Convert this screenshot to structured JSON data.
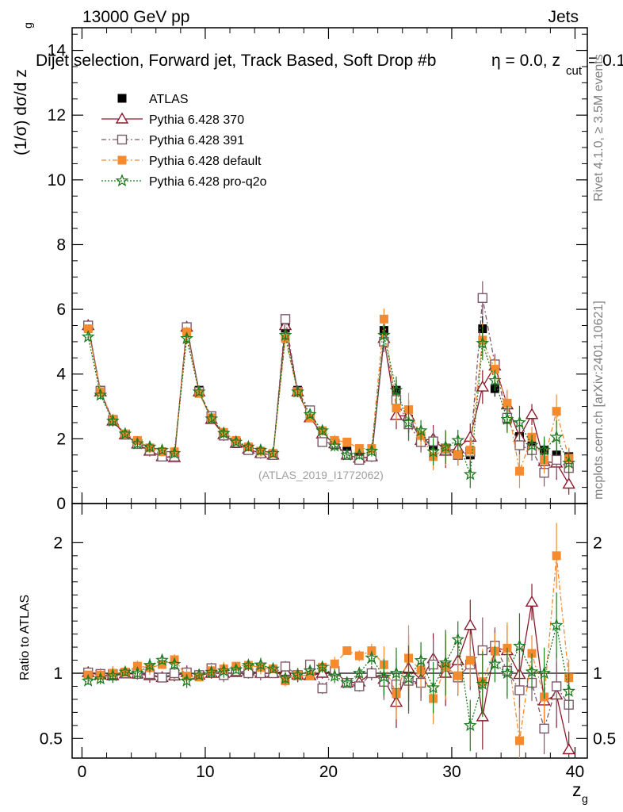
{
  "header": {
    "left": "13000 GeV pp",
    "right": "Jets",
    "title": "Dijet selection, Forward jet, Track Based, Soft Drop #b",
    "title_beta": "η = 0.0, z",
    "title_sub": "cut",
    "title_tail": " = 0.1",
    "watermark": "(ATLAS_2019_I1772062)",
    "side_rivet": "Rivet 4.1.0, ≥ 3.5M events",
    "side_mcplots": "mcplots.cern.ch [arXiv:2401.10621]"
  },
  "axes": {
    "ylabel_main": "(1/σ) dσ/d z",
    "ylabel_main_sub": "g",
    "ylabel_ratio": "Ratio to ATLAS",
    "xlabel": "z",
    "xlabel_sub": "g",
    "main_yticks": [
      "0",
      "2",
      "4",
      "6",
      "8",
      "10",
      "12",
      "14"
    ],
    "ratio_yticks": [
      "0.5",
      "1",
      "2"
    ],
    "xticks": [
      "0",
      "10",
      "20",
      "30",
      "40"
    ]
  },
  "chart_data": {
    "type": "scatter",
    "xlim": [
      -0.8,
      41
    ],
    "ylim_main": [
      0,
      14.7
    ],
    "ylim_ratio": [
      0.35,
      2.3
    ],
    "x": [
      0.5,
      1.5,
      2.5,
      3.5,
      4.5,
      5.5,
      6.5,
      7.5,
      8.5,
      9.5,
      10.5,
      11.5,
      12.5,
      13.5,
      14.5,
      15.5,
      16.5,
      17.5,
      18.5,
      19.5,
      20.5,
      21.5,
      22.5,
      23.5,
      24.5,
      25.5,
      26.5,
      27.5,
      28.5,
      29.5,
      30.5,
      31.5,
      32.5,
      33.5,
      34.5,
      35.5,
      36.5,
      37.5,
      38.5,
      39.5
    ],
    "series": [
      {
        "name": "ATLAS",
        "color": "#000000",
        "marker": "square-filled",
        "values": [
          5.47,
          3.5,
          2.6,
          2.13,
          1.85,
          1.65,
          1.5,
          1.45,
          5.42,
          3.5,
          2.6,
          2.13,
          1.85,
          1.65,
          1.55,
          1.5,
          5.42,
          3.5,
          2.7,
          2.15,
          1.82,
          1.62,
          1.5,
          1.45,
          5.35,
          3.5,
          2.6,
          2.05,
          1.8,
          1.62,
          1.55,
          1.5,
          5.4,
          3.55,
          2.6,
          2.07,
          1.78,
          1.65,
          1.5,
          1.45
        ]
      },
      {
        "name": "Pythia 6.428 370",
        "color": "#8b1a2b",
        "marker": "triangle-open",
        "values": [
          5.5,
          3.45,
          2.55,
          2.12,
          1.84,
          1.62,
          1.45,
          1.42,
          5.45,
          3.45,
          2.6,
          2.13,
          1.86,
          1.68,
          1.55,
          1.5,
          5.5,
          3.45,
          2.65,
          2.15,
          1.85,
          1.5,
          1.4,
          1.45,
          5.1,
          2.72,
          2.7,
          1.95,
          2.0,
          1.62,
          1.7,
          2.05,
          3.6,
          4.25,
          3.05,
          2.05,
          2.75,
          1.3,
          1.25,
          0.6
        ]
      },
      {
        "name": "Pythia 6.428 391",
        "color": "#7d5a6a",
        "marker": "square-open",
        "values": [
          5.5,
          3.48,
          2.58,
          2.13,
          1.84,
          1.64,
          1.45,
          1.45,
          5.45,
          3.45,
          2.7,
          2.1,
          1.88,
          1.65,
          1.55,
          1.5,
          5.7,
          3.45,
          2.88,
          1.9,
          1.85,
          1.5,
          1.35,
          1.45,
          5.0,
          3.2,
          2.45,
          1.9,
          1.92,
          1.7,
          1.5,
          1.6,
          6.35,
          4.3,
          2.65,
          1.8,
          1.65,
          0.95,
          1.35,
          1.1
        ]
      },
      {
        "name": "Pythia 6.428 default",
        "color": "#f58a2e",
        "marker": "square-filled",
        "values": [
          5.4,
          3.45,
          2.6,
          2.15,
          1.95,
          1.72,
          1.6,
          1.6,
          5.3,
          3.4,
          2.65,
          2.2,
          1.95,
          1.75,
          1.62,
          1.55,
          5.1,
          3.45,
          2.65,
          2.25,
          1.95,
          1.9,
          1.7,
          1.7,
          5.7,
          2.95,
          2.9,
          2.1,
          1.45,
          1.7,
          1.52,
          1.65,
          5.05,
          4.15,
          3.1,
          1.0,
          2.05,
          1.35,
          2.85,
          1.4
        ]
      },
      {
        "name": "Pythia 6.428 pro-q2o",
        "color": "#1f7a1f",
        "marker": "star",
        "values": [
          5.15,
          3.35,
          2.55,
          2.15,
          1.85,
          1.75,
          1.65,
          1.55,
          5.1,
          3.45,
          2.62,
          2.17,
          1.9,
          1.75,
          1.65,
          1.55,
          5.2,
          3.45,
          2.75,
          2.25,
          1.78,
          1.5,
          1.5,
          1.62,
          5.2,
          3.5,
          2.5,
          2.25,
          1.6,
          1.75,
          1.95,
          0.9,
          4.95,
          3.8,
          2.6,
          2.5,
          1.8,
          1.65,
          2.05,
          1.25
        ]
      }
    ]
  }
}
